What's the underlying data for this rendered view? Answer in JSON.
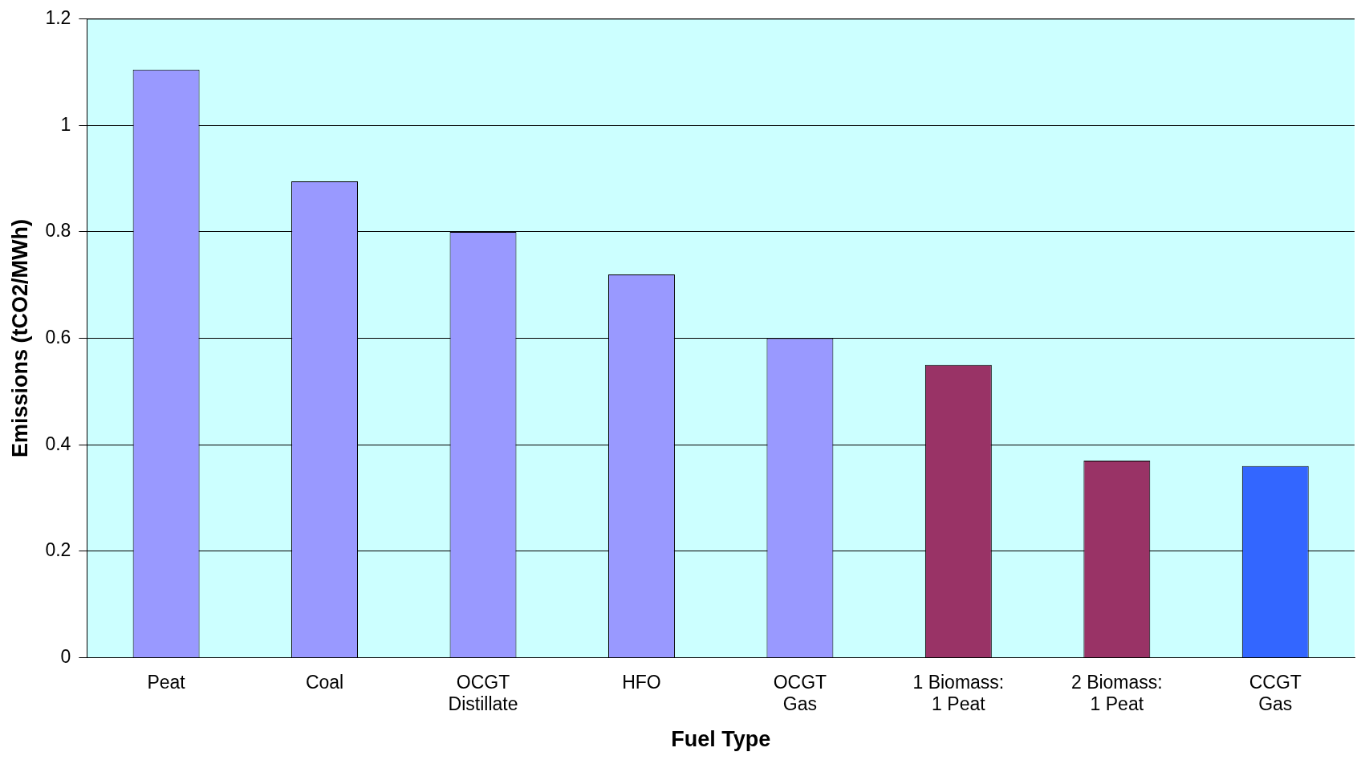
{
  "chart_data": {
    "type": "bar",
    "xlabel": "Fuel Type",
    "ylabel": "Emissions (tCO2/MWh)",
    "categories": [
      "Peat",
      "Coal",
      "OCGT\nDistillate",
      "HFO",
      "OCGT\nGas",
      "1 Biomass:\n1 Peat",
      "2 Biomass:\n1 Peat",
      "CCGT\nGas"
    ],
    "values": [
      1.105,
      0.895,
      0.8,
      0.72,
      0.6,
      0.55,
      0.37,
      0.36
    ],
    "colors": [
      "#9999ff",
      "#9999ff",
      "#9999ff",
      "#9999ff",
      "#9999ff",
      "#993366",
      "#993366",
      "#3366ff"
    ],
    "ylim": [
      0,
      1.2
    ],
    "yticks": [
      0,
      0.2,
      0.4,
      0.6,
      0.8,
      1,
      1.2
    ],
    "grid": "y"
  }
}
